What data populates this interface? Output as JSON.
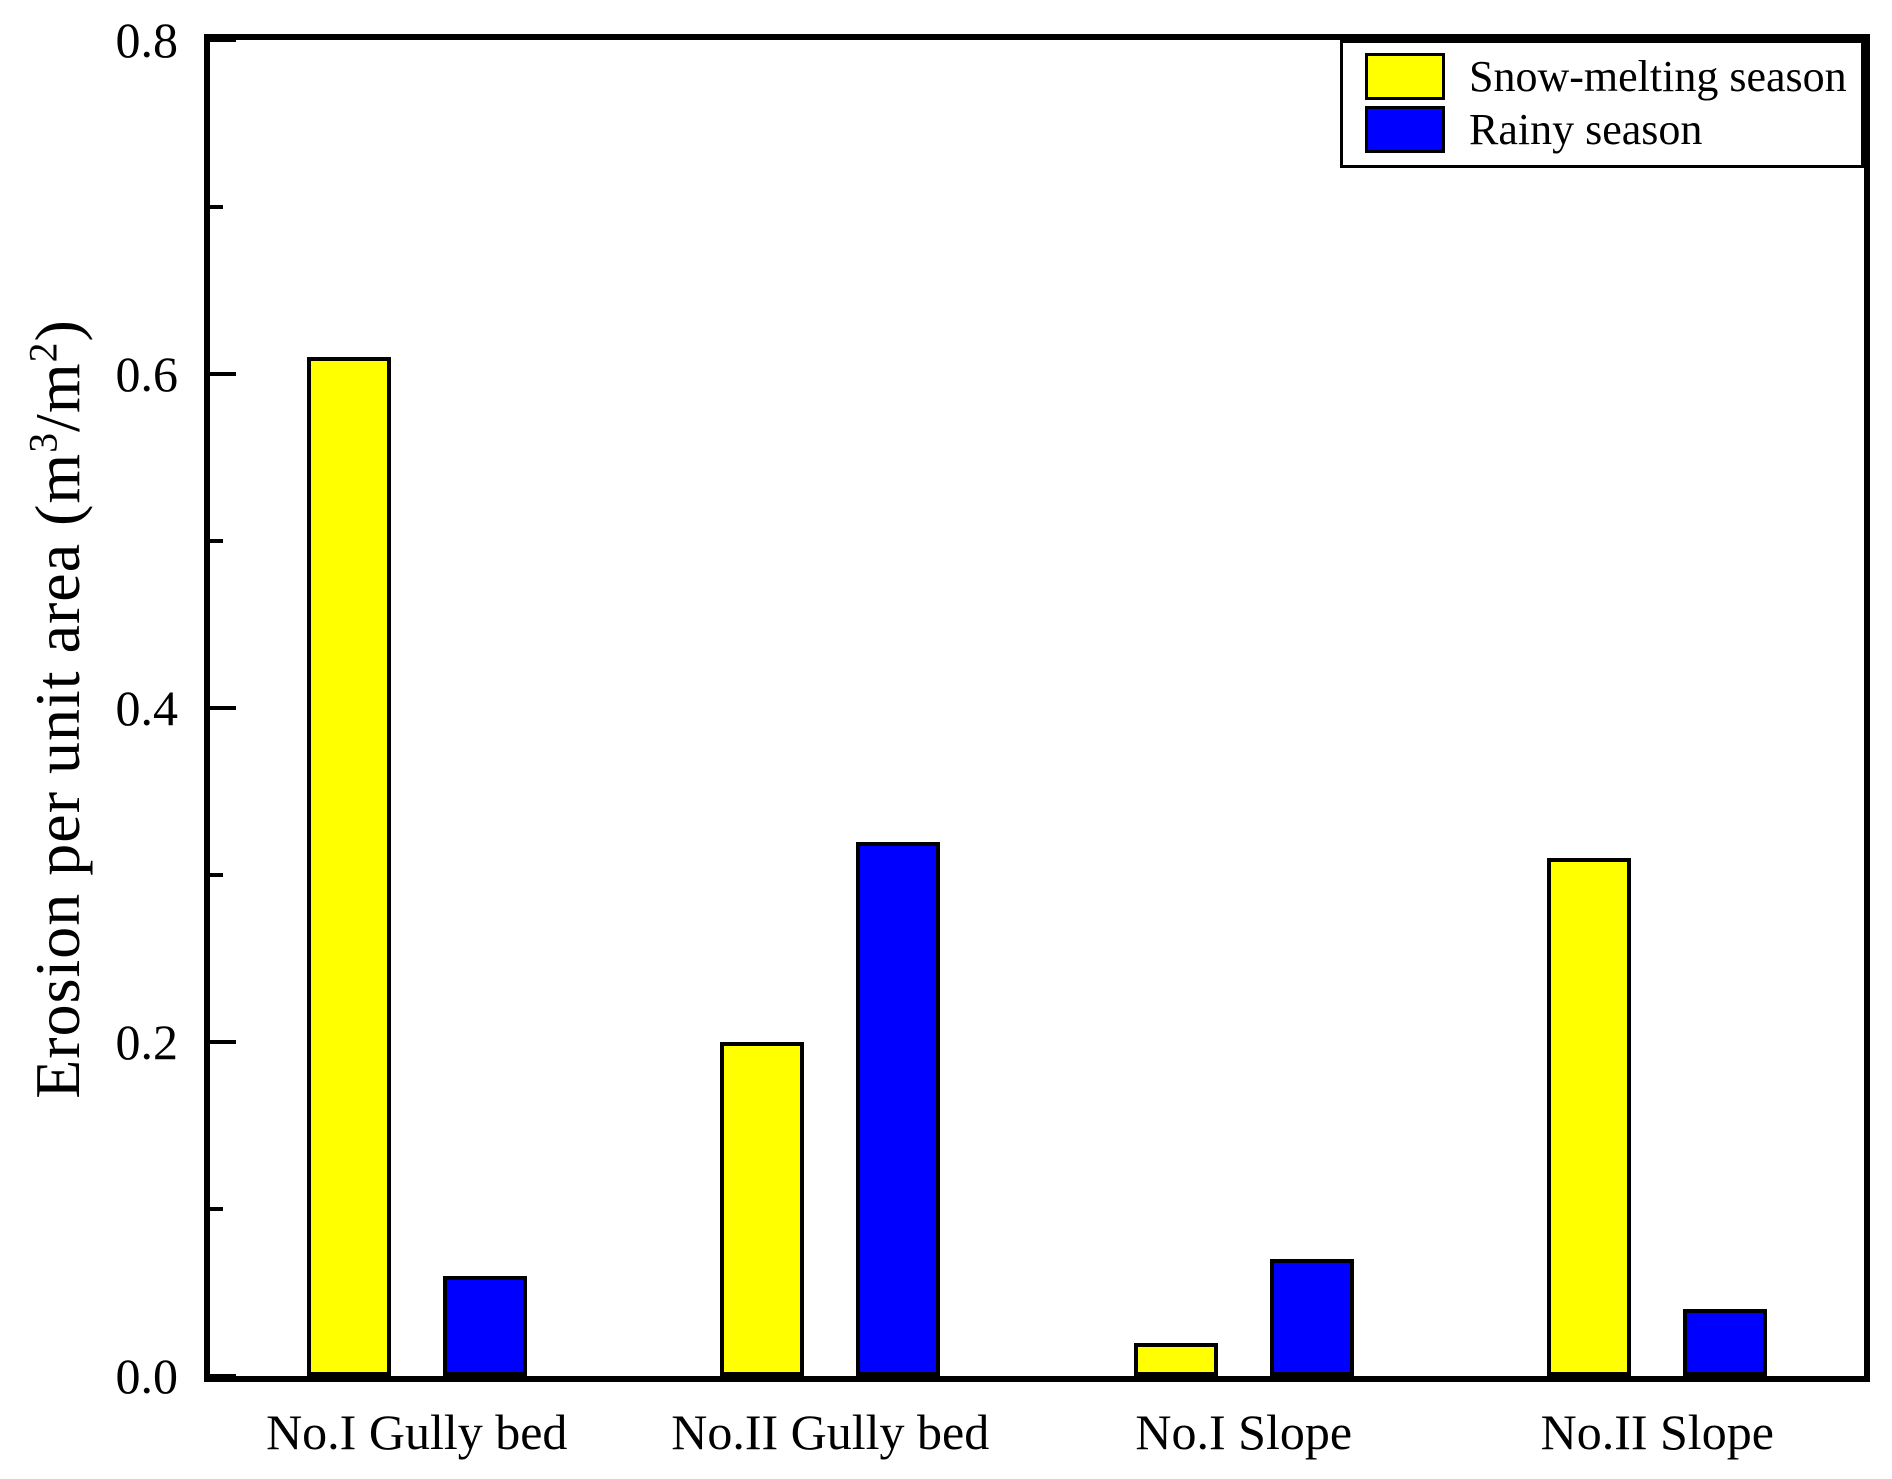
{
  "chart_data": {
    "type": "bar",
    "title": "",
    "categories": [
      "No.I Gully bed",
      "No.II Gully bed",
      "No.I Slope",
      "No.II Slope"
    ],
    "series": [
      {
        "name": "Snow-melting season",
        "color": "#FFFF00",
        "values": [
          0.61,
          0.2,
          0.02,
          0.31
        ]
      },
      {
        "name": "Rainy season",
        "color": "#0000FF",
        "values": [
          0.06,
          0.32,
          0.07,
          0.04
        ]
      }
    ],
    "xlabel": "",
    "ylabel": "Erosion per unit area (m³/m²)",
    "ylabel_parts": [
      "Erosion per unit area (m",
      "3",
      "/m",
      "2",
      ")"
    ],
    "ylim": [
      0,
      0.8
    ],
    "y_major_ticks": [
      0,
      0.2,
      0.4,
      0.6,
      0.8
    ],
    "y_tick_labels": [
      "0.0",
      "0.2",
      "0.4",
      "0.6",
      "0.8"
    ],
    "y_minor_ticks": [
      0.1,
      0.3,
      0.5,
      0.7
    ],
    "grid": false,
    "legend_position": "top-right",
    "colors": {
      "axis": "#000000",
      "bar_edge": "#000000",
      "background": "#FFFFFF"
    }
  }
}
